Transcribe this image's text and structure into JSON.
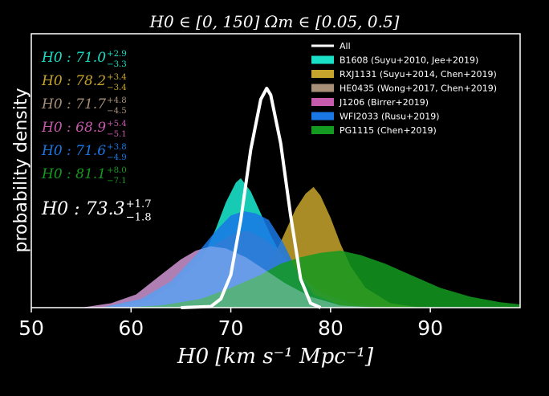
{
  "chart_data": {
    "type": "area",
    "title": "H0 ∈ [0, 150]    Ωm ∈ [0.05, 0.5]",
    "xlabel": "H0 [km s⁻¹ Mpc⁻¹]",
    "ylabel": "probability density",
    "xlim": [
      50,
      99
    ],
    "xticks": [
      50,
      60,
      70,
      80,
      90
    ],
    "legend_position": "upper-right",
    "combined": {
      "name": "All",
      "color": "#ffffff",
      "median": 73.3,
      "plus": 1.7,
      "minus": 1.8,
      "annotation": {
        "lhs": "H0 : 73.3",
        "sup": "+1.7",
        "sub": "−1.8"
      },
      "points": [
        [
          65,
          0
        ],
        [
          68,
          0.005
        ],
        [
          69,
          0.04
        ],
        [
          70,
          0.15
        ],
        [
          71,
          0.4
        ],
        [
          72,
          0.72
        ],
        [
          73,
          0.95
        ],
        [
          73.6,
          1.0
        ],
        [
          74,
          0.97
        ],
        [
          75,
          0.75
        ],
        [
          76,
          0.42
        ],
        [
          77,
          0.13
        ],
        [
          78,
          0.02
        ],
        [
          79,
          0
        ]
      ]
    },
    "series": [
      {
        "name": "B1608 (Suyu+2010, Jee+2019)",
        "color": "#1ae0c8",
        "annotation": {
          "lhs": "H0 : 71.0",
          "sup": "+2.9",
          "sub": "−3.3"
        },
        "points": [
          [
            59,
            0
          ],
          [
            63,
            0.02
          ],
          [
            65,
            0.08
          ],
          [
            67,
            0.21
          ],
          [
            68.5,
            0.36
          ],
          [
            69.5,
            0.48
          ],
          [
            70.5,
            0.57
          ],
          [
            71,
            0.59
          ],
          [
            72,
            0.53
          ],
          [
            73,
            0.43
          ],
          [
            74,
            0.33
          ],
          [
            75.5,
            0.2
          ],
          [
            77.5,
            0.08
          ],
          [
            80,
            0.02
          ],
          [
            83,
            0
          ]
        ]
      },
      {
        "name": "RXJ1131 (Suyu+2014, Chen+2019)",
        "color": "#c7a42c",
        "annotation": {
          "lhs": "H0 : 78.2",
          "sup": "+3.4",
          "sub": "−3.4"
        },
        "points": [
          [
            68,
            0
          ],
          [
            71,
            0.04
          ],
          [
            73,
            0.12
          ],
          [
            75,
            0.3
          ],
          [
            76.5,
            0.45
          ],
          [
            77.5,
            0.52
          ],
          [
            78.3,
            0.55
          ],
          [
            79,
            0.51
          ],
          [
            80,
            0.41
          ],
          [
            81,
            0.29
          ],
          [
            82,
            0.19
          ],
          [
            83.5,
            0.09
          ],
          [
            86,
            0.02
          ],
          [
            89,
            0
          ]
        ]
      },
      {
        "name": "HE0435 (Wong+2017, Chen+2019)",
        "color": "#a89078",
        "annotation": {
          "lhs": "H0 : 71.7",
          "sup": "+4.8",
          "sub": "−4.5"
        },
        "points": [
          [
            58,
            0
          ],
          [
            62,
            0.04
          ],
          [
            64.5,
            0.11
          ],
          [
            66.5,
            0.2
          ],
          [
            68.5,
            0.29
          ],
          [
            70,
            0.33
          ],
          [
            71.7,
            0.35
          ],
          [
            73.5,
            0.31
          ],
          [
            75,
            0.25
          ],
          [
            77,
            0.15
          ],
          [
            79,
            0.07
          ],
          [
            82,
            0.02
          ],
          [
            86,
            0
          ]
        ]
      },
      {
        "name": "J1206 (Birrer+2019)",
        "color": "#c65aac",
        "annotation": {
          "lhs": "H0 : 68.9",
          "sup": "+5.4",
          "sub": "−5.1"
        },
        "points": [
          [
            55,
            0
          ],
          [
            58,
            0.02
          ],
          [
            60.5,
            0.06
          ],
          [
            63,
            0.15
          ],
          [
            65,
            0.22
          ],
          [
            66.5,
            0.26
          ],
          [
            68,
            0.28
          ],
          [
            69.5,
            0.27
          ],
          [
            71.5,
            0.23
          ],
          [
            73.5,
            0.17
          ],
          [
            75.5,
            0.11
          ],
          [
            78,
            0.05
          ],
          [
            81,
            0.01
          ],
          [
            85,
            0
          ]
        ]
      },
      {
        "name": "WFI2033 (Rusu+2019)",
        "color": "#1a78e6",
        "annotation": {
          "lhs": "H0 : 71.6",
          "sup": "+3.8",
          "sub": "−4.9"
        },
        "points": [
          [
            57,
            0
          ],
          [
            61,
            0.04
          ],
          [
            64,
            0.12
          ],
          [
            66.5,
            0.24
          ],
          [
            68.5,
            0.35
          ],
          [
            70,
            0.42
          ],
          [
            71.3,
            0.44
          ],
          [
            72.5,
            0.43
          ],
          [
            73.8,
            0.4
          ],
          [
            75.2,
            0.3
          ],
          [
            76.6,
            0.17
          ],
          [
            78.3,
            0.06
          ],
          [
            81,
            0.01
          ],
          [
            84,
            0
          ]
        ]
      },
      {
        "name": "PG1115 (Chen+2019)",
        "color": "#149a20",
        "annotation": {
          "lhs": "H0 : 81.1",
          "sup": "+8.0",
          "sub": "−7.1"
        },
        "points": [
          [
            59,
            0
          ],
          [
            63,
            0.01
          ],
          [
            67,
            0.04
          ],
          [
            70,
            0.09
          ],
          [
            73,
            0.15
          ],
          [
            75,
            0.2
          ],
          [
            77,
            0.23
          ],
          [
            79,
            0.25
          ],
          [
            81,
            0.26
          ],
          [
            83,
            0.24
          ],
          [
            85.5,
            0.2
          ],
          [
            88,
            0.15
          ],
          [
            91,
            0.09
          ],
          [
            94,
            0.05
          ],
          [
            97,
            0.025
          ],
          [
            99,
            0.015
          ]
        ]
      }
    ]
  }
}
